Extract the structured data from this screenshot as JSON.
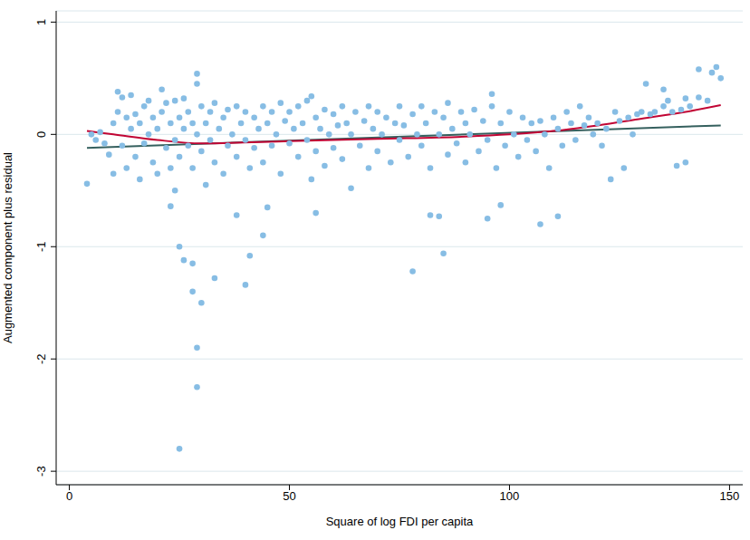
{
  "chart_data": {
    "type": "scatter",
    "x_label": "Square of log FDI per capita",
    "y_label": "Augmented component plus residual",
    "xlim": [
      -3,
      153
    ],
    "ylim": [
      -3.12,
      1.1
    ],
    "xticks": [
      0,
      50,
      100,
      150
    ],
    "yticks": [
      -3,
      -2,
      -1,
      0,
      1
    ],
    "grid": true,
    "series": [
      {
        "type": "scatter",
        "color": "#87bde4",
        "marker": "circle",
        "x": [
          4,
          5,
          6,
          7,
          8,
          9,
          10,
          10,
          11,
          12,
          12,
          13,
          13,
          14,
          14,
          15,
          15,
          16,
          16,
          17,
          17,
          18,
          18,
          19,
          19,
          20,
          20,
          21,
          22,
          22,
          23,
          23,
          24,
          24,
          25,
          25,
          26,
          26,
          27,
          27,
          28,
          28,
          29,
          30,
          30,
          31,
          31,
          32,
          32,
          33,
          33,
          34,
          35,
          35,
          36,
          36,
          37,
          38,
          38,
          39,
          40,
          40,
          41,
          42,
          42,
          43,
          44,
          44,
          45,
          46,
          46,
          47,
          48,
          48,
          49,
          50,
          50,
          51,
          52,
          52,
          53,
          54,
          54,
          55,
          56,
          56,
          57,
          58,
          58,
          59,
          60,
          60,
          61,
          62,
          62,
          63,
          64,
          64,
          65,
          66,
          67,
          68,
          68,
          69,
          70,
          70,
          71,
          72,
          73,
          74,
          75,
          75,
          76,
          77,
          78,
          79,
          80,
          80,
          81,
          82,
          83,
          84,
          85,
          86,
          86,
          87,
          88,
          89,
          90,
          90,
          91,
          92,
          93,
          94,
          95,
          96,
          97,
          98,
          99,
          100,
          101,
          102,
          103,
          104,
          105,
          106,
          107,
          108,
          109,
          110,
          111,
          112,
          113,
          114,
          115,
          116,
          117,
          118,
          119,
          120,
          121,
          122,
          124,
          125,
          127,
          128,
          129,
          130,
          132,
          133,
          135,
          136,
          137,
          139,
          141,
          143,
          145,
          148,
          25,
          29,
          29,
          30,
          28,
          28,
          26,
          25,
          33,
          40,
          41,
          44,
          78,
          82,
          84,
          85,
          107,
          111,
          95,
          98,
          56,
          45,
          38,
          23,
          24,
          140,
          138,
          126,
          123,
          29,
          29,
          11,
          21,
          55,
          96,
          143,
          147,
          146,
          131,
          135,
          140
        ],
        "values": [
          -0.44,
          0.0,
          -0.05,
          0.02,
          -0.08,
          -0.18,
          0.1,
          -0.35,
          0.2,
          0.33,
          -0.1,
          0.15,
          -0.3,
          0.05,
          0.35,
          -0.2,
          0.18,
          0.1,
          -0.4,
          0.25,
          -0.08,
          0.0,
          0.3,
          -0.25,
          0.15,
          0.05,
          -0.35,
          0.2,
          -0.12,
          0.28,
          0.1,
          -0.3,
          0.3,
          -0.05,
          0.15,
          -0.2,
          0.05,
          0.32,
          -0.1,
          0.2,
          0.1,
          -0.3,
          0.0,
          0.25,
          -0.15,
          0.1,
          -0.45,
          0.2,
          -0.05,
          0.28,
          -0.25,
          0.05,
          0.15,
          -0.35,
          0.22,
          -0.1,
          0.0,
          0.25,
          -0.2,
          0.1,
          -0.05,
          0.2,
          -0.3,
          0.15,
          -0.12,
          0.05,
          0.25,
          -0.25,
          0.1,
          -0.1,
          0.2,
          0.0,
          0.28,
          -0.35,
          0.12,
          -0.08,
          0.2,
          0.05,
          -0.2,
          0.25,
          0.1,
          -0.05,
          0.3,
          -0.4,
          0.15,
          -0.15,
          0.05,
          0.22,
          -0.28,
          0.0,
          0.18,
          -0.12,
          0.08,
          -0.22,
          0.25,
          0.1,
          -0.48,
          0.0,
          0.2,
          -0.1,
          0.12,
          -0.3,
          0.25,
          0.05,
          -0.15,
          0.2,
          0.0,
          0.15,
          -0.25,
          0.1,
          -0.05,
          0.25,
          0.08,
          -0.2,
          0.18,
          0.0,
          -0.1,
          0.25,
          0.1,
          -0.3,
          0.2,
          0.0,
          0.15,
          -0.18,
          0.28,
          0.05,
          -0.08,
          0.2,
          -0.25,
          0.1,
          0.0,
          0.22,
          -0.15,
          0.12,
          -0.05,
          0.25,
          -0.3,
          0.1,
          -0.1,
          0.2,
          0.0,
          -0.2,
          0.15,
          -0.05,
          0.1,
          -0.15,
          0.12,
          0.0,
          -0.3,
          0.15,
          0.05,
          -0.1,
          0.2,
          0.1,
          -0.05,
          0.25,
          0.08,
          0.15,
          0.0,
          0.1,
          -0.1,
          0.05,
          0.2,
          0.12,
          0.15,
          0.0,
          0.18,
          0.2,
          0.18,
          0.2,
          0.25,
          0.3,
          0.2,
          0.22,
          0.25,
          0.33,
          0.3,
          0.5,
          -2.8,
          -2.25,
          -1.9,
          -1.5,
          -1.4,
          -1.15,
          -1.12,
          -1.0,
          -1.28,
          -1.34,
          -1.08,
          -0.9,
          -1.22,
          -0.72,
          -0.73,
          -1.06,
          -0.8,
          -0.73,
          -0.75,
          -0.63,
          -0.7,
          -0.65,
          -0.72,
          -0.64,
          -0.5,
          -0.25,
          -0.28,
          -0.3,
          -0.4,
          0.54,
          0.45,
          0.38,
          0.4,
          0.34,
          0.36,
          0.58,
          0.6,
          0.55,
          0.45,
          0.4,
          0.32
        ]
      },
      {
        "type": "line",
        "color": "#35605e",
        "line_style": "solid",
        "x": [
          4,
          148
        ],
        "values": [
          -0.12,
          0.08
        ]
      },
      {
        "type": "line",
        "color": "#c10534",
        "line_style": "solid",
        "x": [
          4,
          10,
          20,
          30,
          50,
          70,
          90,
          100,
          110,
          120,
          130,
          140,
          148
        ],
        "values": [
          0.03,
          0.0,
          -0.05,
          -0.08,
          -0.06,
          -0.04,
          -0.02,
          0.0,
          0.03,
          0.08,
          0.14,
          0.2,
          0.26
        ]
      }
    ]
  }
}
